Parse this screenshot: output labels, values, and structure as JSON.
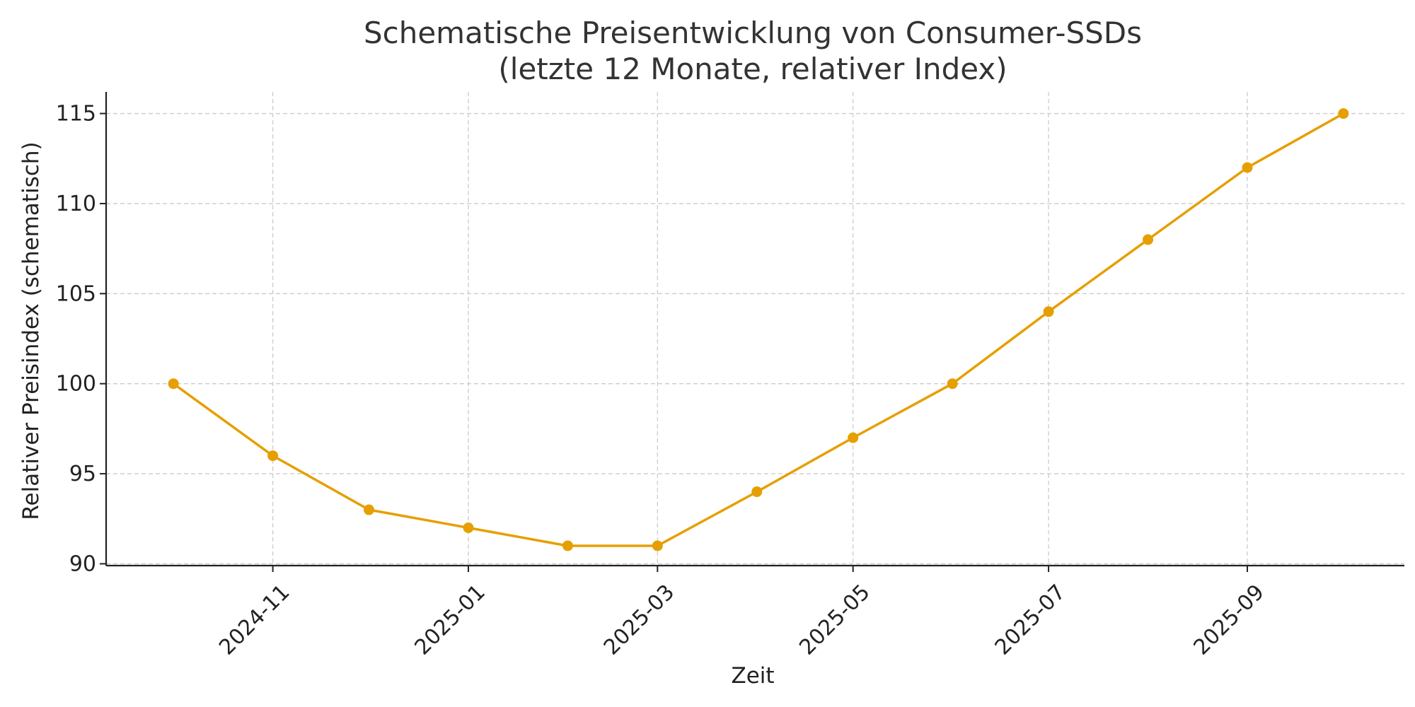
{
  "chart_data": {
    "type": "line",
    "title": [
      "Schematische Preisentwicklung von Consumer-SSDs",
      "(letzte 12 Monate, relativer Index)"
    ],
    "xlabel": "Zeit",
    "ylabel": "Relativer Preisindex (schematisch)",
    "x": [
      "2024-10-01",
      "2024-11-01",
      "2024-12-01",
      "2025-01-01",
      "2025-02-01",
      "2025-03-01",
      "2025-04-01",
      "2025-05-01",
      "2025-06-01",
      "2025-07-01",
      "2025-08-01",
      "2025-09-01",
      "2025-10-01"
    ],
    "series": [
      {
        "values": [
          100,
          96,
          93,
          92,
          91,
          91,
          94,
          97,
          100,
          104,
          108,
          112,
          115
        ],
        "color": "#e69f00"
      }
    ],
    "x_ticks": [
      "2024-11",
      "2025-01",
      "2025-03",
      "2025-05",
      "2025-07",
      "2025-09"
    ],
    "y_ticks": [
      90,
      95,
      100,
      105,
      110,
      115
    ],
    "xlim": [
      "2024-09-10",
      "2025-10-20"
    ],
    "ylim": [
      89.9,
      116.2
    ],
    "grid": true,
    "grid_style": "dashed",
    "legend": "none"
  }
}
